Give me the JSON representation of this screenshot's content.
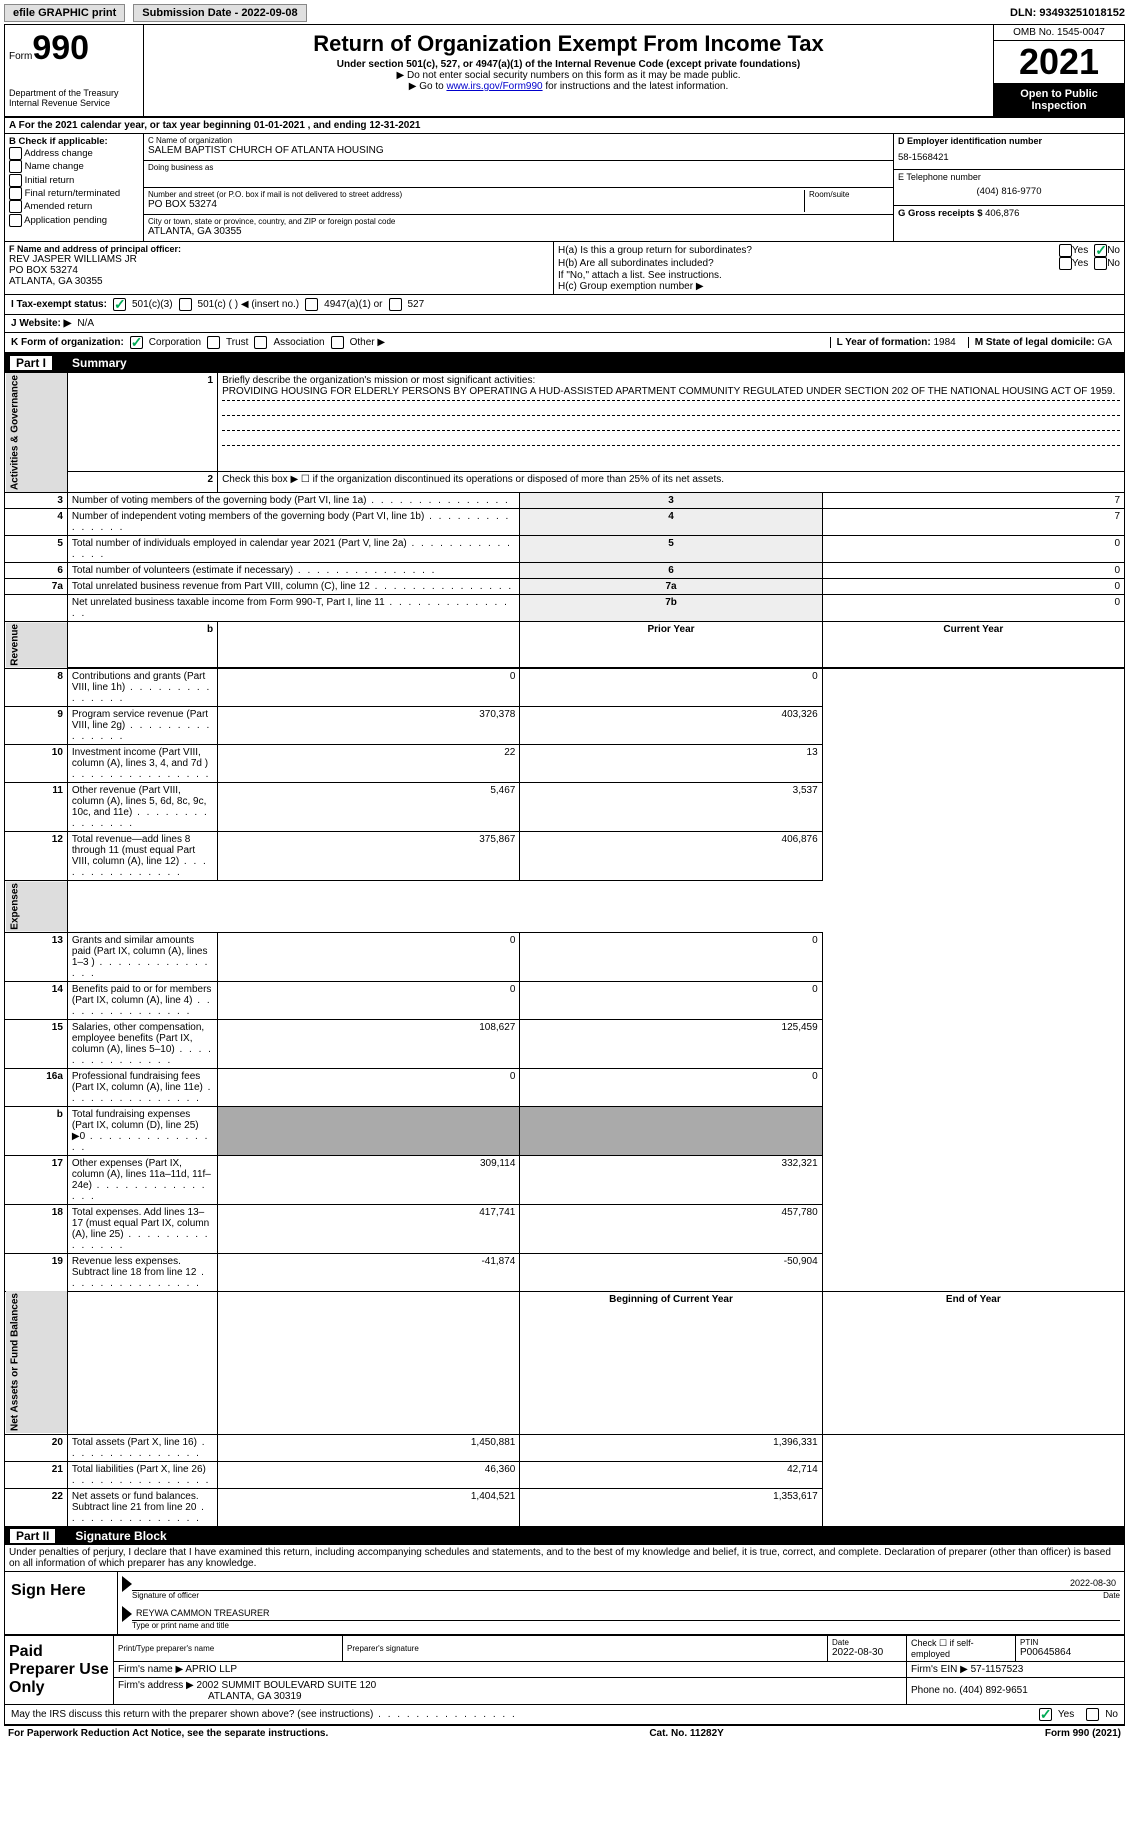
{
  "topbar": {
    "efile": "efile GRAPHIC print",
    "submission_label": "Submission Date - 2022-09-08",
    "dln_label": "DLN: 93493251018152"
  },
  "header": {
    "form_word": "Form",
    "form_num": "990",
    "dept": "Department of the Treasury",
    "irs": "Internal Revenue Service",
    "title": "Return of Organization Exempt From Income Tax",
    "sub1": "Under section 501(c), 527, or 4947(a)(1) of the Internal Revenue Code (except private foundations)",
    "sub2": "▶ Do not enter social security numbers on this form as it may be made public.",
    "sub3_pre": "▶ Go to ",
    "sub3_link": "www.irs.gov/Form990",
    "sub3_post": " for instructions and the latest information.",
    "omb": "OMB No. 1545-0047",
    "year": "2021",
    "open": "Open to Public Inspection"
  },
  "row_a": "A For the 2021 calendar year, or tax year beginning 01-01-2021   , and ending 12-31-2021",
  "col_b": {
    "title": "B Check if applicable:",
    "opts": [
      "Address change",
      "Name change",
      "Initial return",
      "Final return/terminated",
      "Amended return",
      "Application pending"
    ]
  },
  "col_c": {
    "name_label": "C Name of organization",
    "name": "SALEM BAPTIST CHURCH OF ATLANTA HOUSING",
    "dba_label": "Doing business as",
    "addr_label": "Number and street (or P.O. box if mail is not delivered to street address)",
    "room_label": "Room/suite",
    "addr": "PO BOX 53274",
    "city_label": "City or town, state or province, country, and ZIP or foreign postal code",
    "city": "ATLANTA, GA  30355"
  },
  "col_d": {
    "ein_label": "D Employer identification number",
    "ein": "58-1568421",
    "tel_label": "E Telephone number",
    "tel": "(404) 816-9770",
    "gross_label": "G Gross receipts $ ",
    "gross": "406,876"
  },
  "section_f": {
    "f_label": "F Name and address of principal officer:",
    "f_name": "REV JASPER WILLIAMS JR",
    "f_addr1": "PO BOX 53274",
    "f_addr2": "ATLANTA, GA  30355",
    "ha": "H(a)  Is this a group return for subordinates?",
    "hb": "H(b)  Are all subordinates included?",
    "hb_note": "If \"No,\" attach a list. See instructions.",
    "hc": "H(c)  Group exemption number ▶",
    "yes": "Yes",
    "no": "No"
  },
  "row_i": {
    "label": "I  Tax-exempt status:",
    "o1": "501(c)(3)",
    "o2": "501(c) (  ) ◀ (insert no.)",
    "o3": "4947(a)(1) or",
    "o4": "527"
  },
  "row_j": {
    "label": "J  Website: ▶",
    "val": "N/A"
  },
  "row_k": {
    "label": "K Form of organization:",
    "o1": "Corporation",
    "o2": "Trust",
    "o3": "Association",
    "o4": "Other ▶",
    "l_label": "L Year of formation: ",
    "l_val": "1984",
    "m_label": "M State of legal domicile: ",
    "m_val": "GA"
  },
  "part1": {
    "partno": "Part I",
    "title": "Summary"
  },
  "summary": {
    "q1_label": "Briefly describe the organization's mission or most significant activities:",
    "q1_text": "PROVIDING HOUSING FOR ELDERLY PERSONS BY OPERATING A HUD-ASSISTED APARTMENT COMMUNITY REGULATED UNDER SECTION 202 OF THE NATIONAL HOUSING ACT OF 1959.",
    "q2": "Check this box ▶ ☐ if the organization discontinued its operations or disposed of more than 25% of its net assets.",
    "lines_top": [
      {
        "n": "3",
        "t": "Number of voting members of the governing body (Part VI, line 1a)",
        "box": "3",
        "v": "7"
      },
      {
        "n": "4",
        "t": "Number of independent voting members of the governing body (Part VI, line 1b)",
        "box": "4",
        "v": "7"
      },
      {
        "n": "5",
        "t": "Total number of individuals employed in calendar year 2021 (Part V, line 2a)",
        "box": "5",
        "v": "0"
      },
      {
        "n": "6",
        "t": "Total number of volunteers (estimate if necessary)",
        "box": "6",
        "v": "0"
      },
      {
        "n": "7a",
        "t": "Total unrelated business revenue from Part VIII, column (C), line 12",
        "box": "7a",
        "v": "0"
      },
      {
        "n": "",
        "t": "Net unrelated business taxable income from Form 990-T, Part I, line 11",
        "box": "7b",
        "v": "0"
      }
    ],
    "col_headers": {
      "prior": "Prior Year",
      "current": "Current Year",
      "begin": "Beginning of Current Year",
      "end": "End of Year"
    },
    "revenue": [
      {
        "n": "8",
        "t": "Contributions and grants (Part VIII, line 1h)",
        "p": "0",
        "c": "0"
      },
      {
        "n": "9",
        "t": "Program service revenue (Part VIII, line 2g)",
        "p": "370,378",
        "c": "403,326"
      },
      {
        "n": "10",
        "t": "Investment income (Part VIII, column (A), lines 3, 4, and 7d )",
        "p": "22",
        "c": "13"
      },
      {
        "n": "11",
        "t": "Other revenue (Part VIII, column (A), lines 5, 6d, 8c, 9c, 10c, and 11e)",
        "p": "5,467",
        "c": "3,537"
      },
      {
        "n": "12",
        "t": "Total revenue—add lines 8 through 11 (must equal Part VIII, column (A), line 12)",
        "p": "375,867",
        "c": "406,876"
      }
    ],
    "expenses": [
      {
        "n": "13",
        "t": "Grants and similar amounts paid (Part IX, column (A), lines 1–3 )",
        "p": "0",
        "c": "0"
      },
      {
        "n": "14",
        "t": "Benefits paid to or for members (Part IX, column (A), line 4)",
        "p": "0",
        "c": "0"
      },
      {
        "n": "15",
        "t": "Salaries, other compensation, employee benefits (Part IX, column (A), lines 5–10)",
        "p": "108,627",
        "c": "125,459"
      },
      {
        "n": "16a",
        "t": "Professional fundraising fees (Part IX, column (A), line 11e)",
        "p": "0",
        "c": "0"
      },
      {
        "n": "b",
        "t": "Total fundraising expenses (Part IX, column (D), line 25) ▶0",
        "p": "",
        "c": "",
        "shaded": true
      },
      {
        "n": "17",
        "t": "Other expenses (Part IX, column (A), lines 11a–11d, 11f–24e)",
        "p": "309,114",
        "c": "332,321"
      },
      {
        "n": "18",
        "t": "Total expenses. Add lines 13–17 (must equal Part IX, column (A), line 25)",
        "p": "417,741",
        "c": "457,780"
      },
      {
        "n": "19",
        "t": "Revenue less expenses. Subtract line 18 from line 12",
        "p": "-41,874",
        "c": "-50,904"
      }
    ],
    "netassets": [
      {
        "n": "20",
        "t": "Total assets (Part X, line 16)",
        "p": "1,450,881",
        "c": "1,396,331"
      },
      {
        "n": "21",
        "t": "Total liabilities (Part X, line 26)",
        "p": "46,360",
        "c": "42,714"
      },
      {
        "n": "22",
        "t": "Net assets or fund balances. Subtract line 21 from line 20",
        "p": "1,404,521",
        "c": "1,353,617"
      }
    ],
    "side_labels": {
      "gov": "Activities & Governance",
      "rev": "Revenue",
      "exp": "Expenses",
      "net": "Net Assets or Fund Balances"
    }
  },
  "part2": {
    "partno": "Part II",
    "title": "Signature Block",
    "decl": "Under penalties of perjury, I declare that I have examined this return, including accompanying schedules and statements, and to the best of my knowledge and belief, it is true, correct, and complete. Declaration of preparer (other than officer) is based on all information of which preparer has any knowledge."
  },
  "sign": {
    "left": "Sign Here",
    "date": "2022-08-30",
    "sig_label": "Signature of officer",
    "date_label": "Date",
    "name": "REYWA CAMMON  TREASURER",
    "name_label": "Type or print name and title"
  },
  "prep": {
    "left": "Paid Preparer Use Only",
    "h1": "Print/Type preparer's name",
    "h2": "Preparer's signature",
    "h3_label": "Date",
    "h3": "2022-08-30",
    "h4": "Check ☐ if self-employed",
    "h5_label": "PTIN",
    "h5": "P00645864",
    "firm_label": "Firm's name    ▶ ",
    "firm": "APRIO LLP",
    "ein_label": "Firm's EIN ▶ ",
    "ein": "57-1157523",
    "addr_label": "Firm's address ▶ ",
    "addr1": "2002 SUMMIT BOULEVARD SUITE 120",
    "addr2": "ATLANTA, GA  30319",
    "phone_label": "Phone no. ",
    "phone": "(404) 892-9651"
  },
  "discuss": {
    "text": "May the IRS discuss this return with the preparer shown above? (see instructions)",
    "yes": "Yes",
    "no": "No"
  },
  "footer": {
    "left": "For Paperwork Reduction Act Notice, see the separate instructions.",
    "mid": "Cat. No. 11282Y",
    "right": "Form 990 (2021)"
  }
}
